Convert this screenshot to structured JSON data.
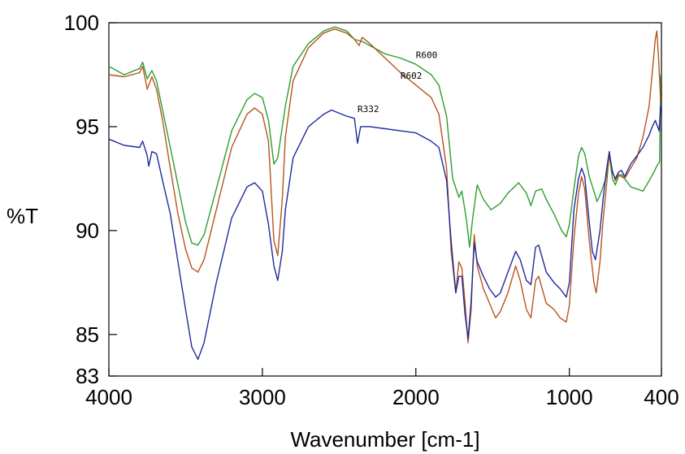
{
  "chart_data": {
    "type": "line",
    "title": "",
    "xlabel": "Wavenumber [cm-1]",
    "ylabel": "%T",
    "xlim": [
      4000,
      400
    ],
    "ylim": [
      83,
      100
    ],
    "x_reversed": true,
    "grid": false,
    "x_ticks": [
      4000,
      3000,
      2000,
      1000,
      400
    ],
    "x_tick_labels": [
      "4000",
      "3000",
      "2000",
      "1000",
      "400"
    ],
    "y_ticks": [
      83,
      85,
      90,
      95,
      100
    ],
    "y_tick_labels": [
      "83",
      "85",
      "90",
      "95",
      "100"
    ],
    "series": [
      {
        "name": "R600",
        "color": "#2e9e2e",
        "points": [
          [
            4000,
            97.9
          ],
          [
            3900,
            97.5
          ],
          [
            3800,
            97.8
          ],
          [
            3780,
            98.1
          ],
          [
            3750,
            97.3
          ],
          [
            3720,
            97.7
          ],
          [
            3690,
            97.2
          ],
          [
            3650,
            95.8
          ],
          [
            3600,
            94.0
          ],
          [
            3550,
            92.2
          ],
          [
            3500,
            90.4
          ],
          [
            3460,
            89.4
          ],
          [
            3420,
            89.3
          ],
          [
            3380,
            89.8
          ],
          [
            3300,
            92.0
          ],
          [
            3200,
            94.8
          ],
          [
            3100,
            96.3
          ],
          [
            3050,
            96.6
          ],
          [
            3000,
            96.4
          ],
          [
            2960,
            95.3
          ],
          [
            2925,
            93.2
          ],
          [
            2900,
            93.5
          ],
          [
            2850,
            96.0
          ],
          [
            2800,
            97.9
          ],
          [
            2700,
            99.0
          ],
          [
            2600,
            99.6
          ],
          [
            2530,
            99.8
          ],
          [
            2450,
            99.6
          ],
          [
            2400,
            99.2
          ],
          [
            2350,
            99.1
          ],
          [
            2300,
            98.9
          ],
          [
            2200,
            98.5
          ],
          [
            2100,
            98.3
          ],
          [
            2000,
            98.0
          ],
          [
            1900,
            97.5
          ],
          [
            1850,
            97.0
          ],
          [
            1800,
            95.5
          ],
          [
            1760,
            92.5
          ],
          [
            1720,
            91.6
          ],
          [
            1700,
            91.9
          ],
          [
            1670,
            90.5
          ],
          [
            1650,
            89.2
          ],
          [
            1630,
            90.6
          ],
          [
            1600,
            92.2
          ],
          [
            1560,
            91.5
          ],
          [
            1510,
            91.0
          ],
          [
            1450,
            91.3
          ],
          [
            1400,
            91.8
          ],
          [
            1330,
            92.3
          ],
          [
            1280,
            91.8
          ],
          [
            1250,
            91.2
          ],
          [
            1220,
            91.9
          ],
          [
            1180,
            92.0
          ],
          [
            1150,
            91.5
          ],
          [
            1100,
            90.8
          ],
          [
            1050,
            90.0
          ],
          [
            1020,
            89.7
          ],
          [
            1000,
            90.3
          ],
          [
            970,
            92.0
          ],
          [
            940,
            93.6
          ],
          [
            920,
            94.0
          ],
          [
            900,
            93.7
          ],
          [
            870,
            92.6
          ],
          [
            840,
            91.9
          ],
          [
            820,
            91.4
          ],
          [
            800,
            91.7
          ],
          [
            780,
            92.1
          ],
          [
            760,
            92.6
          ],
          [
            740,
            93.7
          ],
          [
            720,
            92.5
          ],
          [
            700,
            92.2
          ],
          [
            680,
            92.6
          ],
          [
            660,
            92.7
          ],
          [
            640,
            92.5
          ],
          [
            600,
            92.1
          ],
          [
            560,
            92.0
          ],
          [
            520,
            91.9
          ],
          [
            480,
            92.4
          ],
          [
            450,
            92.8
          ],
          [
            430,
            93.1
          ],
          [
            412,
            93.3
          ],
          [
            405,
            97.5
          ]
        ]
      },
      {
        "name": "R602",
        "color": "#b8541e",
        "points": [
          [
            4000,
            97.5
          ],
          [
            3900,
            97.4
          ],
          [
            3800,
            97.6
          ],
          [
            3780,
            97.9
          ],
          [
            3750,
            96.8
          ],
          [
            3720,
            97.4
          ],
          [
            3690,
            96.8
          ],
          [
            3650,
            95.3
          ],
          [
            3600,
            93.0
          ],
          [
            3550,
            90.8
          ],
          [
            3500,
            89.1
          ],
          [
            3460,
            88.2
          ],
          [
            3420,
            88.0
          ],
          [
            3380,
            88.6
          ],
          [
            3300,
            91.0
          ],
          [
            3200,
            94.0
          ],
          [
            3100,
            95.6
          ],
          [
            3050,
            95.9
          ],
          [
            3000,
            95.6
          ],
          [
            2960,
            94.3
          ],
          [
            2925,
            89.5
          ],
          [
            2900,
            88.8
          ],
          [
            2870,
            91.5
          ],
          [
            2850,
            94.5
          ],
          [
            2800,
            97.2
          ],
          [
            2700,
            98.8
          ],
          [
            2600,
            99.5
          ],
          [
            2530,
            99.7
          ],
          [
            2450,
            99.5
          ],
          [
            2400,
            99.2
          ],
          [
            2370,
            98.9
          ],
          [
            2350,
            99.3
          ],
          [
            2300,
            99.0
          ],
          [
            2200,
            98.3
          ],
          [
            2100,
            97.6
          ],
          [
            2000,
            97.0
          ],
          [
            1900,
            96.4
          ],
          [
            1850,
            95.6
          ],
          [
            1800,
            93.0
          ],
          [
            1770,
            89.0
          ],
          [
            1740,
            87.0
          ],
          [
            1720,
            88.5
          ],
          [
            1700,
            88.2
          ],
          [
            1680,
            86.6
          ],
          [
            1660,
            84.6
          ],
          [
            1640,
            86.2
          ],
          [
            1620,
            89.8
          ],
          [
            1600,
            88.3
          ],
          [
            1560,
            87.2
          ],
          [
            1520,
            86.5
          ],
          [
            1480,
            85.8
          ],
          [
            1450,
            86.1
          ],
          [
            1400,
            87.0
          ],
          [
            1350,
            88.3
          ],
          [
            1320,
            87.6
          ],
          [
            1280,
            86.2
          ],
          [
            1250,
            85.8
          ],
          [
            1220,
            87.6
          ],
          [
            1200,
            87.8
          ],
          [
            1150,
            86.5
          ],
          [
            1100,
            86.2
          ],
          [
            1060,
            85.8
          ],
          [
            1020,
            85.6
          ],
          [
            1000,
            86.4
          ],
          [
            970,
            89.6
          ],
          [
            940,
            91.8
          ],
          [
            920,
            92.6
          ],
          [
            900,
            92.0
          ],
          [
            870,
            89.5
          ],
          [
            840,
            87.5
          ],
          [
            825,
            87.0
          ],
          [
            800,
            88.5
          ],
          [
            780,
            90.5
          ],
          [
            760,
            92.0
          ],
          [
            740,
            93.7
          ],
          [
            720,
            92.9
          ],
          [
            700,
            92.4
          ],
          [
            680,
            92.7
          ],
          [
            660,
            92.6
          ],
          [
            640,
            92.5
          ],
          [
            600,
            93.0
          ],
          [
            560,
            93.5
          ],
          [
            520,
            94.5
          ],
          [
            480,
            96.0
          ],
          [
            460,
            97.6
          ],
          [
            440,
            99.2
          ],
          [
            430,
            99.6
          ],
          [
            420,
            98.5
          ],
          [
            405,
            96.2
          ]
        ]
      },
      {
        "name": "R332",
        "color": "#1f2a9c",
        "points": [
          [
            4000,
            94.4
          ],
          [
            3900,
            94.1
          ],
          [
            3800,
            94.0
          ],
          [
            3780,
            94.3
          ],
          [
            3750,
            93.6
          ],
          [
            3740,
            93.1
          ],
          [
            3720,
            93.8
          ],
          [
            3690,
            93.7
          ],
          [
            3650,
            92.4
          ],
          [
            3600,
            90.8
          ],
          [
            3550,
            88.5
          ],
          [
            3500,
            86.2
          ],
          [
            3460,
            84.4
          ],
          [
            3420,
            83.8
          ],
          [
            3380,
            84.6
          ],
          [
            3300,
            87.5
          ],
          [
            3200,
            90.6
          ],
          [
            3100,
            92.1
          ],
          [
            3050,
            92.3
          ],
          [
            3000,
            91.9
          ],
          [
            2960,
            90.3
          ],
          [
            2925,
            88.3
          ],
          [
            2900,
            87.6
          ],
          [
            2870,
            89.0
          ],
          [
            2850,
            91.0
          ],
          [
            2800,
            93.5
          ],
          [
            2700,
            95.0
          ],
          [
            2600,
            95.6
          ],
          [
            2550,
            95.8
          ],
          [
            2450,
            95.5
          ],
          [
            2400,
            95.4
          ],
          [
            2380,
            94.2
          ],
          [
            2360,
            95.0
          ],
          [
            2300,
            95.0
          ],
          [
            2200,
            94.9
          ],
          [
            2100,
            94.8
          ],
          [
            2000,
            94.7
          ],
          [
            1900,
            94.3
          ],
          [
            1850,
            94.0
          ],
          [
            1800,
            92.4
          ],
          [
            1770,
            89.5
          ],
          [
            1740,
            87.0
          ],
          [
            1720,
            87.8
          ],
          [
            1700,
            87.8
          ],
          [
            1680,
            86.0
          ],
          [
            1660,
            84.8
          ],
          [
            1640,
            86.6
          ],
          [
            1620,
            89.4
          ],
          [
            1600,
            88.5
          ],
          [
            1560,
            87.8
          ],
          [
            1520,
            87.2
          ],
          [
            1480,
            86.8
          ],
          [
            1450,
            87.0
          ],
          [
            1400,
            88.0
          ],
          [
            1350,
            89.0
          ],
          [
            1320,
            88.6
          ],
          [
            1280,
            87.6
          ],
          [
            1250,
            87.4
          ],
          [
            1220,
            89.2
          ],
          [
            1200,
            89.3
          ],
          [
            1150,
            88.0
          ],
          [
            1100,
            87.5
          ],
          [
            1060,
            87.2
          ],
          [
            1020,
            86.8
          ],
          [
            1000,
            87.5
          ],
          [
            970,
            91.0
          ],
          [
            940,
            92.5
          ],
          [
            920,
            93.0
          ],
          [
            900,
            92.6
          ],
          [
            870,
            90.4
          ],
          [
            850,
            89.0
          ],
          [
            830,
            88.6
          ],
          [
            800,
            90.0
          ],
          [
            780,
            91.5
          ],
          [
            760,
            92.8
          ],
          [
            740,
            93.8
          ],
          [
            720,
            92.8
          ],
          [
            700,
            92.5
          ],
          [
            680,
            92.8
          ],
          [
            660,
            92.9
          ],
          [
            640,
            92.6
          ],
          [
            600,
            93.2
          ],
          [
            560,
            93.6
          ],
          [
            520,
            94.0
          ],
          [
            480,
            94.6
          ],
          [
            460,
            95.0
          ],
          [
            440,
            95.3
          ],
          [
            425,
            95.0
          ],
          [
            415,
            94.8
          ],
          [
            405,
            96.0
          ]
        ]
      }
    ],
    "series_labels": [
      {
        "text": "R600",
        "series": "R600",
        "x": 2000,
        "y": 98.3
      },
      {
        "text": "R602",
        "series": "R602",
        "x": 2100,
        "y": 97.3
      },
      {
        "text": "R332",
        "series": "R332",
        "x": 2380,
        "y": 95.7
      }
    ]
  }
}
